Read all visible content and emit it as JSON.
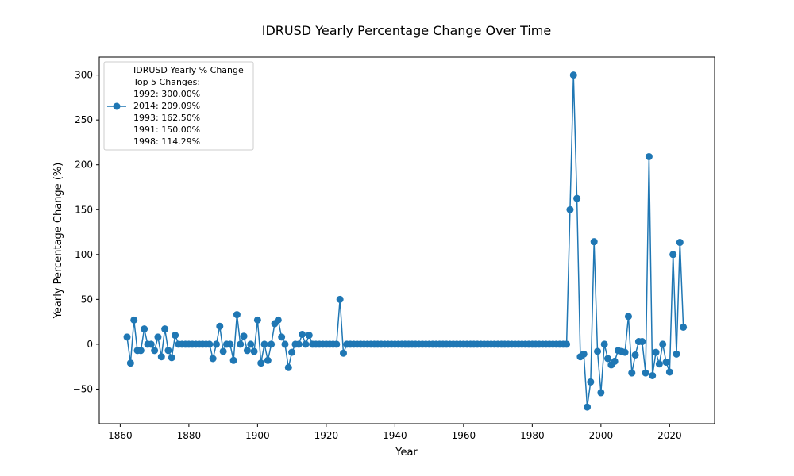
{
  "chart_data": {
    "type": "line",
    "title": "IDRUSD Yearly Percentage Change Over Time",
    "xlabel": "Year",
    "ylabel": "Yearly Percentage Change (%)",
    "xlim": [
      1853.9,
      2033.1
    ],
    "ylim": [
      -88.5,
      320
    ],
    "x_ticks": [
      1860,
      1880,
      1900,
      1920,
      1940,
      1960,
      1980,
      2000,
      2020
    ],
    "y_ticks": [
      -50,
      0,
      50,
      100,
      150,
      200,
      250,
      300
    ],
    "grid": false,
    "legend_position": "upper-left",
    "colors": {
      "series": "#1f77b4",
      "axis": "#000000",
      "background": "#ffffff"
    },
    "legend_lines": [
      "IDRUSD Yearly % Change",
      "Top 5 Changes:",
      "1992: 300.00%",
      "2014: 209.09%",
      "1993: 162.50%",
      "1991: 150.00%",
      "1998: 114.29%"
    ],
    "series": [
      {
        "name": "IDRUSD Yearly % Change",
        "x": [
          1862,
          1863,
          1864,
          1865,
          1866,
          1867,
          1868,
          1869,
          1870,
          1871,
          1872,
          1873,
          1874,
          1875,
          1876,
          1877,
          1878,
          1879,
          1880,
          1881,
          1882,
          1883,
          1884,
          1885,
          1886,
          1887,
          1888,
          1889,
          1890,
          1891,
          1892,
          1893,
          1894,
          1895,
          1896,
          1897,
          1898,
          1899,
          1900,
          1901,
          1902,
          1903,
          1904,
          1905,
          1906,
          1907,
          1908,
          1909,
          1910,
          1911,
          1912,
          1913,
          1914,
          1915,
          1916,
          1917,
          1918,
          1919,
          1920,
          1921,
          1922,
          1923,
          1924,
          1925,
          1926,
          1927,
          1928,
          1929,
          1930,
          1931,
          1932,
          1933,
          1934,
          1935,
          1936,
          1937,
          1938,
          1939,
          1940,
          1941,
          1942,
          1943,
          1944,
          1945,
          1946,
          1947,
          1948,
          1949,
          1950,
          1951,
          1952,
          1953,
          1954,
          1955,
          1956,
          1957,
          1958,
          1959,
          1960,
          1961,
          1962,
          1963,
          1964,
          1965,
          1966,
          1967,
          1968,
          1969,
          1970,
          1971,
          1972,
          1973,
          1974,
          1975,
          1976,
          1977,
          1978,
          1979,
          1980,
          1981,
          1982,
          1983,
          1984,
          1985,
          1986,
          1987,
          1988,
          1989,
          1990,
          1991,
          1992,
          1993,
          1994,
          1995,
          1996,
          1997,
          1998,
          1999,
          2000,
          2001,
          2002,
          2003,
          2004,
          2005,
          2006,
          2007,
          2008,
          2009,
          2010,
          2011,
          2012,
          2013,
          2014,
          2015,
          2016,
          2017,
          2018,
          2019,
          2020,
          2021,
          2022,
          2023,
          2024
        ],
        "y": [
          8,
          -21,
          27,
          -7,
          -7,
          17,
          0,
          0,
          -7,
          8,
          -14,
          17,
          -7,
          -15,
          10,
          0,
          0,
          0,
          0,
          0,
          0,
          0,
          0,
          0,
          0,
          -16,
          0,
          20,
          -8,
          0,
          0,
          -18,
          33,
          0,
          9,
          -7,
          0,
          -8,
          27,
          -21,
          0,
          -18,
          0,
          23,
          27,
          8,
          0,
          -26,
          -9,
          0,
          0,
          11,
          0,
          10,
          0,
          0,
          0,
          0,
          0,
          0,
          0,
          0,
          50,
          -10,
          0,
          0,
          0,
          0,
          0,
          0,
          0,
          0,
          0,
          0,
          0,
          0,
          0,
          0,
          0,
          0,
          0,
          0,
          0,
          0,
          0,
          0,
          0,
          0,
          0,
          0,
          0,
          0,
          0,
          0,
          0,
          0,
          0,
          0,
          0,
          0,
          0,
          0,
          0,
          0,
          0,
          0,
          0,
          0,
          0,
          0,
          0,
          0,
          0,
          0,
          0,
          0,
          0,
          0,
          0,
          0,
          0,
          0,
          0,
          0,
          0,
          0,
          0,
          0,
          0,
          150,
          300,
          162.5,
          -14,
          -11,
          -70,
          -42,
          114.29,
          -8,
          -54,
          0,
          -16,
          -23,
          -19,
          -7,
          -8,
          -9,
          31,
          -32,
          -12,
          3,
          3,
          -32,
          209.09,
          -35,
          -9,
          -22,
          0,
          -20,
          -31,
          100,
          -11,
          113.5,
          19
        ]
      }
    ]
  }
}
